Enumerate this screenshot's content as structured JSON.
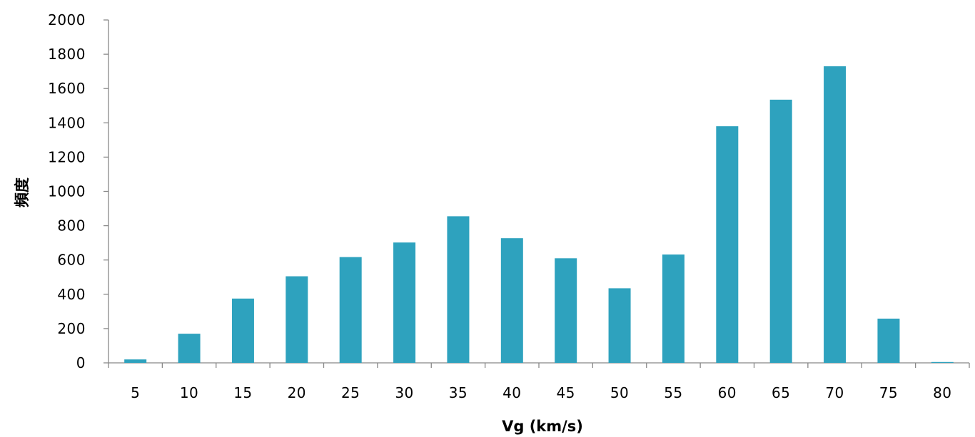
{
  "chart_data": {
    "type": "bar",
    "categories": [
      "5",
      "10",
      "15",
      "20",
      "25",
      "30",
      "35",
      "40",
      "45",
      "50",
      "55",
      "60",
      "65",
      "70",
      "75",
      "80"
    ],
    "series": [
      {
        "values": [
          20,
          170,
          375,
          505,
          617,
          702,
          855,
          727,
          610,
          435,
          632,
          1380,
          1535,
          1730,
          258,
          5
        ]
      }
    ],
    "y_ticks": [
      "0",
      "200",
      "400",
      "600",
      "800",
      "1000",
      "1200",
      "1400",
      "1600",
      "1800",
      "2000"
    ],
    "xlabel": "Vg (km/s)",
    "ylabel": "頻度",
    "ylim": [
      0,
      2000
    ],
    "grid": false,
    "legend": "none",
    "bar_color": "#2ea2be",
    "axis_color": "#888888"
  }
}
